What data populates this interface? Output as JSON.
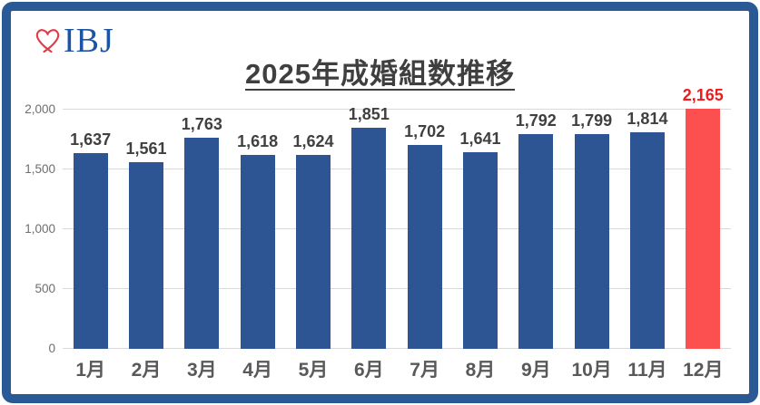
{
  "logo": {
    "heart_color": "#E23B45",
    "text": "IBJ",
    "text_color": "#1C55A5"
  },
  "header": {
    "title": "2025年成婚組数推移"
  },
  "chart_data": {
    "type": "bar",
    "title": "2025年成婚組数推移",
    "categories": [
      "1月",
      "2月",
      "3月",
      "4月",
      "5月",
      "6月",
      "7月",
      "8月",
      "9月",
      "10月",
      "11月",
      "12月"
    ],
    "values": [
      1637,
      1561,
      1763,
      1618,
      1624,
      1851,
      1702,
      1641,
      1792,
      1799,
      1814,
      2165
    ],
    "value_labels": [
      "1,637",
      "1,561",
      "1,763",
      "1,618",
      "1,624",
      "1,851",
      "1,702",
      "1,641",
      "1,792",
      "1,799",
      "1,814",
      "2,165"
    ],
    "xlabel": "",
    "ylabel": "",
    "ylim": [
      0,
      2200
    ],
    "y_axis": {
      "step": 500,
      "ticks": [
        "0",
        "500",
        "1,000",
        "1,500",
        "2,000"
      ]
    },
    "grid": true,
    "legend": false,
    "bar_color": "#2E5593",
    "highlight_index": 11,
    "highlight_color": "#FC5050",
    "label_color": "#404040",
    "highlight_label_color": "#EE1C1C",
    "gridline_color": "#D9D9D9"
  }
}
